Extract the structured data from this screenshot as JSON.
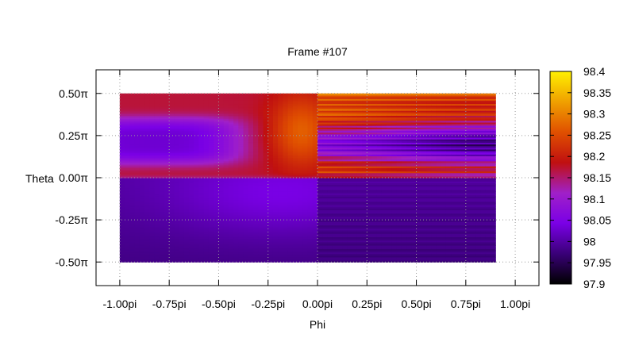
{
  "chart_data": {
    "type": "heatmap",
    "title": "Frame #107",
    "xlabel": "Phi",
    "ylabel": "Theta",
    "x_ticks": [
      {
        "value": -1.0,
        "label": "-1.00pi"
      },
      {
        "value": -0.75,
        "label": "-0.75pi"
      },
      {
        "value": -0.5,
        "label": "-0.50pi"
      },
      {
        "value": -0.25,
        "label": "-0.25pi"
      },
      {
        "value": 0.0,
        "label": "0.00pi"
      },
      {
        "value": 0.25,
        "label": "0.25pi"
      },
      {
        "value": 0.5,
        "label": "0.50pi"
      },
      {
        "value": 0.75,
        "label": "0.75pi"
      },
      {
        "value": 1.0,
        "label": "1.00pi"
      }
    ],
    "y_ticks": [
      {
        "value": 0.5,
        "label": "0.50π"
      },
      {
        "value": 0.25,
        "label": "0.25π"
      },
      {
        "value": 0.0,
        "label": "0.00π"
      },
      {
        "value": -0.25,
        "label": "-0.25π"
      },
      {
        "value": -0.5,
        "label": "-0.50π"
      }
    ],
    "xlim": [
      -1.12,
      1.12
    ],
    "ylim": [
      -0.64,
      0.64
    ],
    "data_extent": {
      "x": [
        -1.0,
        0.9
      ],
      "y": [
        -0.5,
        0.5
      ]
    },
    "grid": true,
    "colorbar": {
      "range": [
        97.9,
        98.4
      ],
      "ticks": [
        "98.4",
        "98.35",
        "98.3",
        "98.25",
        "98.2",
        "98.15",
        "98.1",
        "98.05",
        "98",
        "97.95",
        "97.9"
      ],
      "colormap": [
        "#000000",
        "#3a0078",
        "#7a00e6",
        "#a020c8",
        "#c01010",
        "#e05000",
        "#f0a000",
        "#fff000"
      ]
    },
    "regions": [
      {
        "x": [
          -1.0,
          0.0
        ],
        "y": [
          0.0,
          0.5
        ],
        "description": "orange with purple lobe near phi -0.8, bright near phi -0.05"
      },
      {
        "x": [
          0.0,
          0.9
        ],
        "y": [
          0.0,
          0.5
        ],
        "description": "horizontally striped orange to purple"
      },
      {
        "x": [
          -1.0,
          0.0
        ],
        "y": [
          -0.5,
          0.0
        ],
        "value_range": [
          97.97,
          98.03
        ]
      },
      {
        "x": [
          0.0,
          0.9
        ],
        "y": [
          -0.5,
          0.0
        ],
        "value_range": [
          97.95,
          98.02
        ]
      }
    ]
  }
}
